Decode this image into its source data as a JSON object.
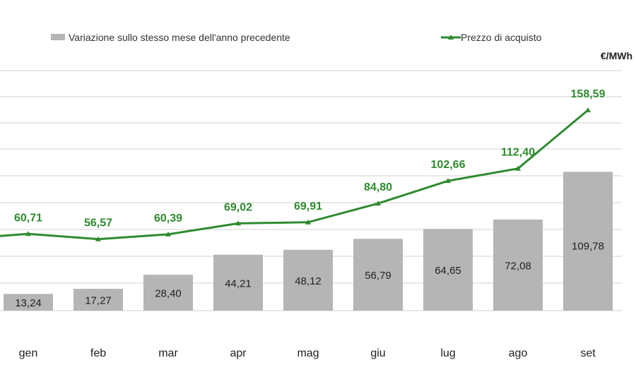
{
  "legend": {
    "bar_label": "Variazione sullo stesso mese dell'anno precedente",
    "line_label": "Prezzo di acquisto"
  },
  "unit": "€/MWh",
  "colors": {
    "bar": "#b5b5b5",
    "line": "#2e8b2e",
    "grid": "#d0d0d0",
    "text": "#222222"
  },
  "chart_data": {
    "type": "bar",
    "categories": [
      "gen",
      "feb",
      "mar",
      "apr",
      "mag",
      "giu",
      "lug",
      "ago",
      "set"
    ],
    "series": [
      {
        "name": "Variazione sullo stesso mese dell'anno precedente",
        "type": "bar",
        "values": [
          13.24,
          17.27,
          28.4,
          44.21,
          48.12,
          56.79,
          64.65,
          72.08,
          109.78
        ],
        "labels": [
          "13,24",
          "17,27",
          "28,40",
          "44,21",
          "48,12",
          "56,79",
          "64,65",
          "72,08",
          "109,78"
        ]
      },
      {
        "name": "Prezzo di acquisto",
        "type": "line",
        "values": [
          60.71,
          56.57,
          60.39,
          69.02,
          69.91,
          84.8,
          102.66,
          112.4,
          158.59
        ],
        "labels": [
          "60,71",
          "56,57",
          "60,39",
          "69,02",
          "69,91",
          "84,80",
          "102,66",
          "112,40",
          "158,59"
        ]
      }
    ],
    "ylim": [
      0,
      180
    ],
    "grid": true,
    "legend_position": "top"
  }
}
